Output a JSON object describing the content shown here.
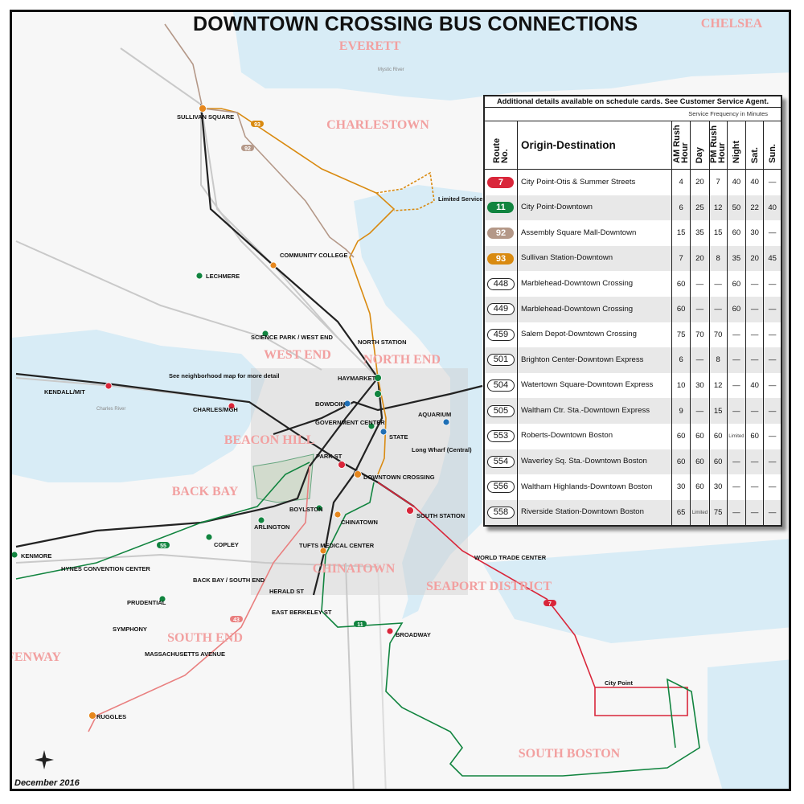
{
  "title": "DOWNTOWN CROSSING BUS CONNECTIONS",
  "footer_date": "December 2016",
  "colors": {
    "route_7": "#d9263a",
    "route_11": "#11843f",
    "route_92": "#b49888",
    "route_93": "#d98a10",
    "water": "#d8ecf6",
    "land": "#f7f7f7",
    "subway_red": "#d9263a",
    "subway_orange": "#e6871d",
    "subway_green": "#11843f",
    "subway_blue": "#1f6fb5"
  },
  "map": {
    "neighborhoods": [
      "EVERETT",
      "CHELSEA",
      "CHARLESTOWN",
      "WEST END",
      "NORTH END",
      "BEACON HILL",
      "BACK BAY",
      "CHINATOWN",
      "SEAPORT DISTRICT",
      "SOUTH END",
      "FENWAY",
      "SOUTH BOSTON"
    ],
    "stations": [
      "SULLIVAN SQUARE",
      "COMMUNITY COLLEGE",
      "LECHMERE",
      "SCIENCE PARK / WEST END",
      "NORTH STATION",
      "HAYMARKET",
      "BOWDOIN",
      "GOVERNMENT CENTER",
      "STATE",
      "AQUARIUM",
      "PARK ST",
      "DOWNTOWN CROSSING",
      "BOYLSTON",
      "ARLINGTON",
      "COPLEY",
      "HYNES CONVENTION CENTER",
      "KENMORE",
      "PRUDENTIAL",
      "CHINATOWN",
      "TUFTS MEDICAL CENTER",
      "SOUTH STATION",
      "WORLD TRADE CENTER",
      "BROADWAY",
      "HERALD ST",
      "EAST BERKELEY ST",
      "BACK BAY / SOUTH END",
      "SYMPHONY",
      "MASSACHUSETTS AVENUE",
      "RUGGLES",
      "KENDALL/MIT",
      "CHARLES/MGH",
      "City Point",
      "Long Wharf (Central)"
    ],
    "callouts": {
      "neighborhood_map": "See neighborhood map for more detail",
      "limited": "Limited Service"
    },
    "water_labels": [
      "Mystic River",
      "Charles River"
    ],
    "route_labels": [
      "93",
      "92",
      "7",
      "11",
      "55",
      "43"
    ]
  },
  "schedule": {
    "note": "Additional details available on schedule cards. See Customer Service Agent.",
    "frequency_caption": "Service Frequency in Minutes",
    "headers": {
      "route": "Route No.",
      "origin": "Origin-Destination",
      "am": "AM Rush Hour",
      "day": "Day",
      "pm": "PM Rush Hour",
      "night": "Night",
      "sat": "Sat.",
      "sun": "Sun."
    },
    "rows": [
      {
        "route": "7",
        "style": "red",
        "origin": "City Point-Otis & Summer Streets",
        "am": "4",
        "day": "20",
        "pm": "7",
        "night": "40",
        "sat": "40",
        "sun": "—"
      },
      {
        "route": "11",
        "style": "green",
        "origin": "City Point-Downtown",
        "am": "6",
        "day": "25",
        "pm": "12",
        "night": "50",
        "sat": "22",
        "sun": "40"
      },
      {
        "route": "92",
        "style": "brown",
        "origin": "Assembly Square Mall-Downtown",
        "am": "15",
        "day": "35",
        "pm": "15",
        "night": "60",
        "sat": "30",
        "sun": "—"
      },
      {
        "route": "93",
        "style": "orange",
        "origin": "Sullivan Station-Downtown",
        "am": "7",
        "day": "20",
        "pm": "8",
        "night": "35",
        "sat": "20",
        "sun": "45"
      },
      {
        "route": "448",
        "style": "plain",
        "origin": "Marblehead-Downtown Crossing",
        "am": "60",
        "day": "—",
        "pm": "—",
        "night": "60",
        "sat": "—",
        "sun": "—"
      },
      {
        "route": "449",
        "style": "plain",
        "origin": "Marblehead-Downtown Crossing",
        "am": "60",
        "day": "—",
        "pm": "—",
        "night": "60",
        "sat": "—",
        "sun": "—"
      },
      {
        "route": "459",
        "style": "plain",
        "origin": "Salem Depot-Downtown Crossing",
        "am": "75",
        "day": "70",
        "pm": "70",
        "night": "—",
        "sat": "—",
        "sun": "—"
      },
      {
        "route": "501",
        "style": "plain",
        "origin": "Brighton Center-Downtown Express",
        "am": "6",
        "day": "—",
        "pm": "8",
        "night": "—",
        "sat": "—",
        "sun": "—"
      },
      {
        "route": "504",
        "style": "plain",
        "origin": "Watertown Square-Downtown Express",
        "am": "10",
        "day": "30",
        "pm": "12",
        "night": "—",
        "sat": "40",
        "sun": "—"
      },
      {
        "route": "505",
        "style": "plain",
        "origin": "Waltham Ctr. Sta.-Downtown Express",
        "am": "9",
        "day": "—",
        "pm": "15",
        "night": "—",
        "sat": "—",
        "sun": "—"
      },
      {
        "route": "553",
        "style": "plain",
        "origin": "Roberts-Downtown Boston",
        "am": "60",
        "day": "60",
        "pm": "60",
        "night": "Limited",
        "sat": "60",
        "sun": "—"
      },
      {
        "route": "554",
        "style": "plain",
        "origin": "Waverley Sq. Sta.-Downtown Boston",
        "am": "60",
        "day": "60",
        "pm": "60",
        "night": "—",
        "sat": "—",
        "sun": "—"
      },
      {
        "route": "556",
        "style": "plain",
        "origin": "Waltham Highlands-Downtown Boston",
        "am": "30",
        "day": "60",
        "pm": "30",
        "night": "—",
        "sat": "—",
        "sun": "—"
      },
      {
        "route": "558",
        "style": "plain",
        "origin": "Riverside Station-Downtown Boston",
        "am": "65",
        "day": "Limited",
        "pm": "75",
        "night": "—",
        "sat": "—",
        "sun": "—"
      }
    ]
  }
}
